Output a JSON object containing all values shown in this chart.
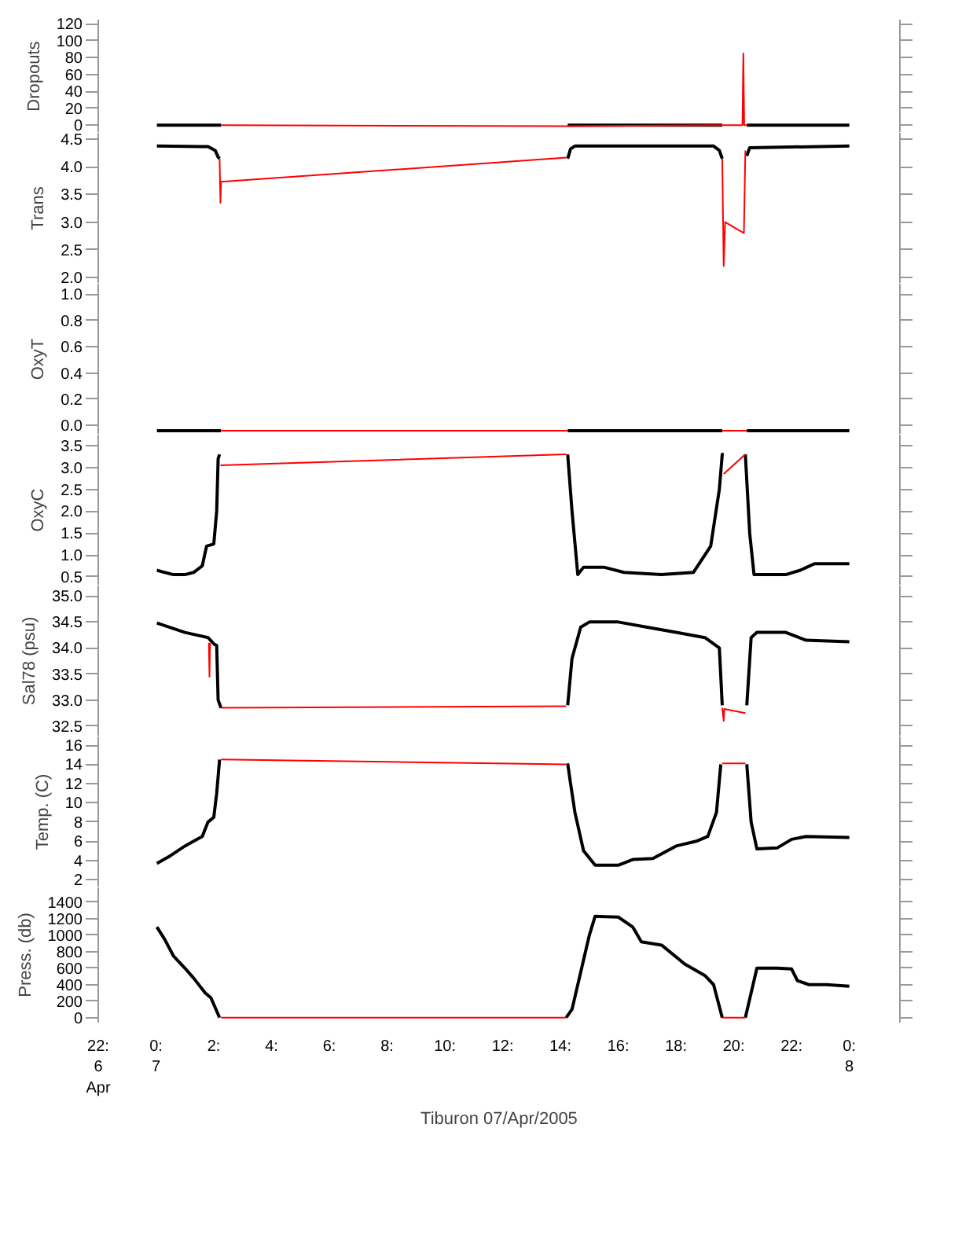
{
  "chart_data": [
    {
      "type": "line",
      "ylabel": "Dropouts",
      "xlim": [
        -2,
        25.75
      ],
      "ylim": [
        -9,
        125
      ],
      "yticks": [
        0,
        20,
        40,
        60,
        80,
        100,
        120
      ],
      "tick_labels": "y",
      "series": [
        {
          "color": "#000000",
          "x": [
            0.03,
            2.25,
            null,
            14.25,
            19.6,
            null,
            20.45,
            24.0
          ],
          "values": [
            0,
            0,
            null,
            0,
            0,
            null,
            0,
            0
          ]
        },
        {
          "color": "#ff0000",
          "x": [
            2.25,
            14.25,
            19.6,
            20.3,
            20.33,
            20.36,
            20.45
          ],
          "values": [
            0,
            -1,
            0,
            0,
            85,
            0,
            0
          ]
        }
      ]
    },
    {
      "type": "line",
      "ylabel": "Trans",
      "xlim": [
        -2,
        25.75
      ],
      "ylim": [
        1.88,
        4.62
      ],
      "yticks": [
        {
          "value": 2.0,
          "label": "2.0"
        },
        2.5,
        {
          "value": 3.0,
          "label": "3.0"
        },
        3.5,
        {
          "value": 4.0,
          "label": "4.0"
        },
        4.5
      ],
      "tick_labels": "y",
      "series": [
        {
          "color": "#000000",
          "x": [
            0.03,
            1.8,
            2.05,
            2.15,
            2.2,
            null,
            14.25,
            14.35,
            14.5,
            19.3,
            19.5,
            19.6,
            null,
            20.45,
            20.55,
            24.0
          ],
          "values": [
            4.38,
            4.37,
            4.3,
            4.18,
            4.15,
            null,
            4.15,
            4.33,
            4.38,
            4.38,
            4.3,
            4.15,
            null,
            4.2,
            4.35,
            4.38
          ]
        },
        {
          "color": "#ff0000",
          "x": [
            2.2,
            2.23,
            2.25,
            14.2,
            null,
            19.6,
            19.65,
            19.7,
            20.35,
            20.4
          ],
          "values": [
            4.15,
            3.35,
            3.73,
            4.17,
            null,
            4.15,
            2.2,
            3.0,
            2.8,
            4.3
          ]
        }
      ]
    },
    {
      "type": "line",
      "ylabel": "OxyT",
      "xlim": [
        -2,
        25.75
      ],
      "ylim": [
        -0.07,
        1.08
      ],
      "yticks": [
        {
          "value": 0,
          "label": "0.0"
        },
        0.2,
        0.4,
        0.6,
        0.8,
        {
          "value": 1,
          "label": "1.0"
        }
      ],
      "tick_labels": "y",
      "series": [
        {
          "color": "#000000",
          "x": [
            0.03,
            2.25,
            null,
            14.25,
            19.6,
            null,
            20.45,
            24.0
          ],
          "values": [
            -0.04,
            -0.04,
            null,
            -0.04,
            -0.04,
            null,
            -0.04,
            -0.04
          ]
        },
        {
          "color": "#ff0000",
          "x": [
            2.25,
            14.25,
            null,
            19.6,
            20.45
          ],
          "values": [
            -0.04,
            -0.04,
            null,
            -0.04,
            -0.04
          ]
        }
      ]
    },
    {
      "type": "line",
      "ylabel": "OxyC",
      "xlim": [
        -2,
        25.75
      ],
      "ylim": [
        0.3,
        3.75
      ],
      "yticks": [
        0.5,
        {
          "value": 1,
          "label": "1.0"
        },
        1.5,
        {
          "value": 2,
          "label": "2.0"
        },
        2.5,
        {
          "value": 3,
          "label": "3.0"
        },
        3.5
      ],
      "tick_labels": "y",
      "series": [
        {
          "color": "#000000",
          "x": [
            0.03,
            0.3,
            0.6,
            1.0,
            1.3,
            1.6,
            1.75,
            2.0,
            2.1,
            2.15,
            2.2,
            null,
            14.25,
            14.4,
            14.6,
            14.8,
            15.5,
            16.2,
            17.5,
            18.6,
            19.2,
            19.5,
            19.6,
            19.65,
            null,
            20.4,
            20.55,
            20.7,
            21.8,
            22.3,
            22.8,
            24.0
          ],
          "values": [
            0.65,
            0.6,
            0.55,
            0.55,
            0.6,
            0.75,
            1.2,
            1.25,
            2.0,
            3.2,
            3.3,
            null,
            3.3,
            2.0,
            0.55,
            0.72,
            0.72,
            0.6,
            0.55,
            0.6,
            1.2,
            2.5,
            3.3,
            3.3,
            null,
            3.3,
            1.5,
            0.55,
            0.55,
            0.65,
            0.8,
            0.8
          ]
        },
        {
          "color": "#ff0000",
          "x": [
            2.23,
            14.2,
            null,
            19.65,
            20.4
          ],
          "values": [
            3.05,
            3.3,
            null,
            2.85,
            3.3
          ]
        }
      ]
    },
    {
      "type": "line",
      "ylabel": "Sal78 (psu)",
      "xlim": [
        -2,
        25.75
      ],
      "ylim": [
        32.3,
        35.2
      ],
      "yticks": [
        32.5,
        {
          "value": 33,
          "label": "33.0"
        },
        33.5,
        {
          "value": 34,
          "label": "34.0"
        },
        34.5,
        {
          "value": 35,
          "label": "35.0"
        }
      ],
      "tick_labels": "y",
      "series": [
        {
          "color": "#000000",
          "x": [
            0.03,
            1.0,
            1.8,
            2.0,
            2.1,
            2.15,
            2.25,
            null,
            14.25,
            14.4,
            14.7,
            15.0,
            16.0,
            17.0,
            18.0,
            19.0,
            19.5,
            19.6,
            null,
            20.45,
            20.6,
            20.8,
            21.8,
            22.5,
            24.0
          ],
          "values": [
            34.48,
            34.3,
            34.2,
            34.08,
            34.05,
            33.0,
            32.85,
            null,
            32.9,
            33.8,
            34.4,
            34.5,
            34.5,
            34.4,
            34.3,
            34.2,
            34.0,
            32.9,
            null,
            32.9,
            34.2,
            34.3,
            34.3,
            34.15,
            34.12
          ]
        },
        {
          "color": "#ff0000",
          "x": [
            1.83,
            1.85,
            1.87,
            null,
            2.25,
            14.2,
            null,
            19.6,
            19.65,
            19.67,
            20.4
          ],
          "values": [
            34.1,
            33.45,
            34.1,
            null,
            32.85,
            32.88,
            null,
            32.85,
            32.6,
            32.83,
            32.75
          ]
        }
      ]
    },
    {
      "type": "line",
      "ylabel": "Temp. (C)",
      "xlim": [
        -2,
        25.75
      ],
      "ylim": [
        1.2,
        16.9
      ],
      "yticks": [
        2,
        4,
        6,
        8,
        10,
        12,
        14,
        16
      ],
      "tick_labels": "y",
      "series": [
        {
          "color": "#000000",
          "x": [
            0.03,
            0.5,
            1.0,
            1.3,
            1.6,
            1.8,
            2.0,
            2.1,
            2.2,
            null,
            14.25,
            14.35,
            14.5,
            14.8,
            15.2,
            16.0,
            16.5,
            17.2,
            18.0,
            18.7,
            19.1,
            19.4,
            19.55,
            null,
            20.45,
            20.6,
            20.8,
            21.5,
            22.0,
            22.5,
            24.0
          ],
          "values": [
            3.7,
            4.5,
            5.5,
            6.0,
            6.5,
            8.0,
            8.5,
            11,
            14.5,
            null,
            14.1,
            12,
            9,
            5,
            3.5,
            3.5,
            4.1,
            4.2,
            5.5,
            6,
            6.5,
            9,
            14.0,
            null,
            14,
            8,
            5.2,
            5.3,
            6.2,
            6.5,
            6.4
          ]
        },
        {
          "color": "#ff0000",
          "x": [
            2.25,
            14.2,
            null,
            19.6,
            20.4
          ],
          "values": [
            14.5,
            14.0,
            null,
            14.1,
            14.1
          ]
        }
      ]
    },
    {
      "type": "line",
      "ylabel": "Press. (db)",
      "xlabel": "Tiburon 07/Apr/2005",
      "xlim": [
        -2,
        25.75
      ],
      "ylim": [
        -60,
        1580
      ],
      "yticks": [
        0,
        200,
        400,
        600,
        800,
        1000,
        1200,
        1400
      ],
      "xticks": [
        {
          "value": -2,
          "label": "22:\n6\nApr"
        },
        {
          "value": 0,
          "label": "0:\n7"
        },
        {
          "value": 2,
          "label": "2:"
        },
        {
          "value": 4,
          "label": "4:"
        },
        {
          "value": 6,
          "label": "6:"
        },
        {
          "value": 8,
          "label": "8:"
        },
        {
          "value": 10,
          "label": "10:"
        },
        {
          "value": 12,
          "label": "12:"
        },
        {
          "value": 14,
          "label": "14:"
        },
        {
          "value": 16,
          "label": "16:"
        },
        {
          "value": 18,
          "label": "18:"
        },
        {
          "value": 20,
          "label": "20:"
        },
        {
          "value": 22,
          "label": "22:"
        },
        {
          "value": 24,
          "label": "0:\n8"
        }
      ],
      "series": [
        {
          "color": "#000000",
          "x": [
            0.03,
            0.3,
            0.6,
            1.0,
            1.3,
            1.7,
            1.9,
            2.2,
            null,
            14.2,
            14.4,
            15.0,
            15.2,
            16.0,
            16.5,
            16.8,
            17.5,
            18.3,
            19.0,
            19.3,
            19.6,
            null,
            20.4,
            20.8,
            21.5,
            22.0,
            22.2,
            22.6,
            23.2,
            24.0
          ],
          "values": [
            1100,
            950,
            750,
            600,
            480,
            300,
            240,
            0,
            null,
            0,
            100,
            1000,
            1230,
            1220,
            1100,
            920,
            880,
            650,
            510,
            400,
            0,
            null,
            0,
            600,
            600,
            590,
            450,
            400,
            400,
            380
          ]
        },
        {
          "color": "#ff0000",
          "x": [
            2.25,
            14.2,
            null,
            19.6,
            20.4
          ],
          "values": [
            0,
            0,
            null,
            0,
            0
          ]
        }
      ]
    }
  ]
}
